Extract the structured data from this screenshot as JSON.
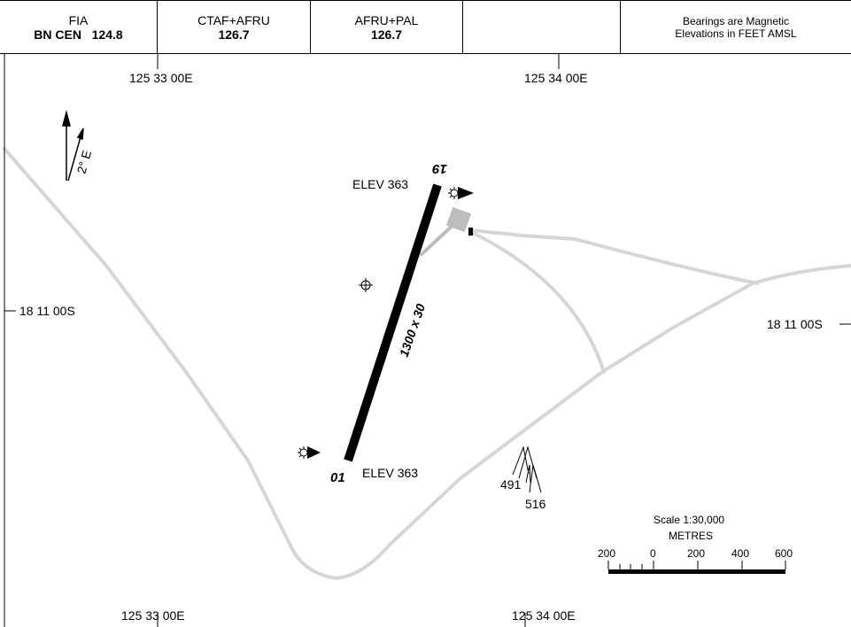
{
  "header": {
    "cells": [
      {
        "line1": "FIA",
        "line2_name": "BN CEN",
        "line2_freq": "124.8"
      },
      {
        "line1": "CTAF+AFRU",
        "line2": "126.7"
      },
      {
        "line1": "AFRU+PAL",
        "line2": "126.7"
      },
      {
        "line1": "",
        "line2": ""
      },
      {
        "line1": "Bearings are Magnetic",
        "line2": "Elevations in FEET AMSL"
      }
    ]
  },
  "grid": {
    "lon_left_top": "125 33 00E",
    "lon_right_top": "125 34 00E",
    "lon_left_bottom": "125 33 00E",
    "lon_right_bottom": "125 34 00E",
    "lat_left": "18 11 00S",
    "lat_right": "18 11 00S"
  },
  "north_arrow": {
    "variation": "2° E"
  },
  "runway": {
    "dimensions": "1300 x 30",
    "end_north": "19",
    "end_south": "01",
    "elev_north": "ELEV 363",
    "elev_south": "ELEV 363"
  },
  "terrain": {
    "spot1": "491",
    "spot2": "516"
  },
  "scale": {
    "title": "Scale 1:30,000",
    "units": "METRES",
    "ticks": [
      "200",
      "0",
      "200",
      "400",
      "600"
    ]
  },
  "colors": {
    "road": "#d6d6d6",
    "apron": "#bdbdbd",
    "ink": "#000000"
  }
}
